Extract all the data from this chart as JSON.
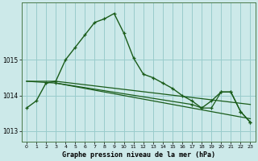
{
  "title": "Graphe pression niveau de la mer (hPa)",
  "background_color": "#cce9e9",
  "grid_color": "#99cccc",
  "line_color": "#1a5c1a",
  "xlim": [
    -0.5,
    23.5
  ],
  "ylim": [
    1012.7,
    1016.6
  ],
  "yticks": [
    1013,
    1014,
    1015
  ],
  "xticks": [
    0,
    1,
    2,
    3,
    4,
    5,
    6,
    7,
    8,
    9,
    10,
    11,
    12,
    13,
    14,
    15,
    16,
    17,
    18,
    19,
    20,
    21,
    22,
    23
  ],
  "line1_x": [
    0,
    1,
    2,
    3,
    4,
    5,
    6,
    7,
    8,
    9,
    10,
    11,
    12,
    13,
    14,
    15,
    16,
    17,
    18,
    19,
    20,
    21,
    22,
    23
  ],
  "line1_y": [
    1013.65,
    1013.85,
    1014.35,
    1014.4,
    1015.0,
    1015.35,
    1015.7,
    1016.05,
    1016.15,
    1016.3,
    1015.75,
    1015.05,
    1014.6,
    1014.5,
    1014.35,
    1014.2,
    1014.0,
    1013.85,
    1013.65,
    1013.85,
    1014.1,
    1014.1,
    1013.55,
    1013.25
  ],
  "line2_x": [
    0,
    3,
    23
  ],
  "line2_y": [
    1014.4,
    1014.4,
    1013.75
  ],
  "line3_x": [
    0,
    3,
    23
  ],
  "line3_y": [
    1014.4,
    1014.35,
    1013.35
  ],
  "line4_x": [
    3,
    17,
    18,
    19,
    20,
    21,
    22,
    23
  ],
  "line4_y": [
    1014.35,
    1013.75,
    1013.65,
    1013.65,
    1014.1,
    1014.1,
    1013.55,
    1013.25
  ]
}
